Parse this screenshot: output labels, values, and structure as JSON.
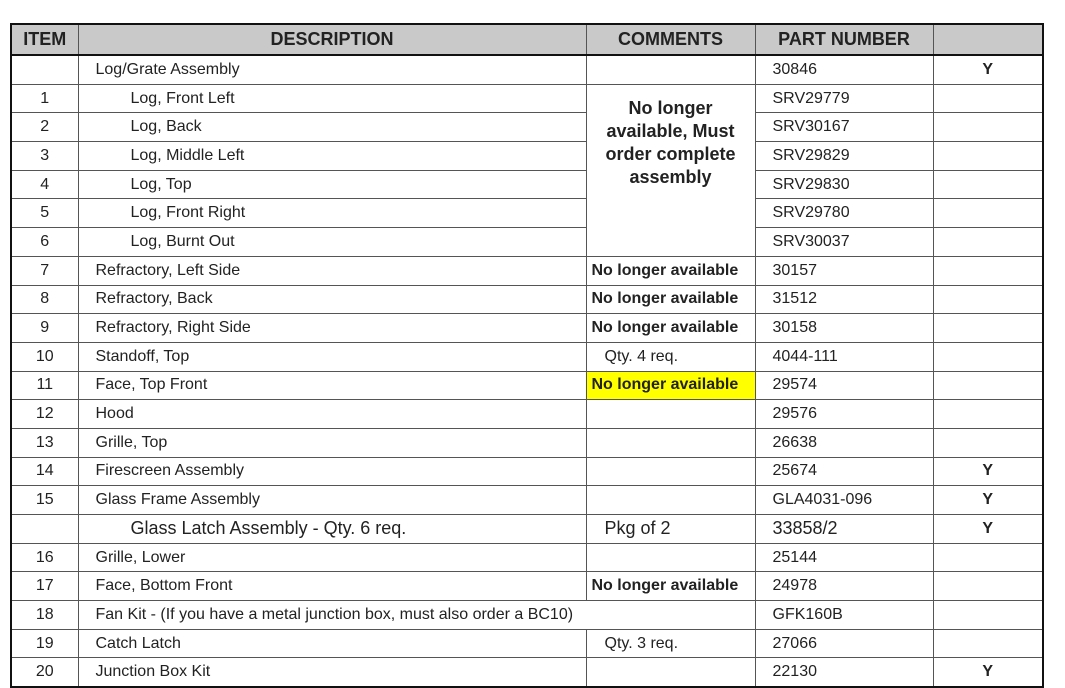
{
  "table": {
    "header": [
      "ITEM",
      "DESCRIPTION",
      "COMMENTS",
      "PART NUMBER"
    ],
    "merged_comment": "No longer available, Must order complete assembly",
    "rows": [
      {
        "description": "Log/Grate Assembly",
        "part": "30846",
        "flag": "Y"
      },
      {
        "item": "1",
        "description": "Log, Front Left",
        "part": "SRV29779",
        "indent": true,
        "in_merged_comment": true
      },
      {
        "item": "2",
        "description": "Log, Back",
        "part": "SRV30167",
        "indent": true,
        "in_merged_comment": true
      },
      {
        "item": "3",
        "description": "Log, Middle Left",
        "part": "SRV29829",
        "indent": true,
        "in_merged_comment": true
      },
      {
        "item": "4",
        "description": "Log, Top",
        "part": "SRV29830",
        "indent": true,
        "in_merged_comment": true
      },
      {
        "item": "5",
        "description": "Log, Front Right",
        "part": "SRV29780",
        "indent": true,
        "in_merged_comment": true
      },
      {
        "item": "6",
        "description": "Log, Burnt Out",
        "part": "SRV30037",
        "indent": true,
        "in_merged_comment": true
      },
      {
        "item": "7",
        "description": "Refractory, Left Side",
        "comment": "No longer available",
        "bold_comment": true,
        "part": "30157"
      },
      {
        "item": "8",
        "description": "Refractory, Back",
        "comment": "No longer available",
        "bold_comment": true,
        "part": "31512"
      },
      {
        "item": "9",
        "description": "Refractory, Right Side",
        "comment": "No longer available",
        "bold_comment": true,
        "part": "30158"
      },
      {
        "item": "10",
        "description": "Standoff, Top",
        "comment": "Qty. 4 req.",
        "part": "4044-111"
      },
      {
        "item": "11",
        "description": "Face, Top Front",
        "comment": "No longer available",
        "bold_comment": true,
        "highlight": true,
        "part": "29574"
      },
      {
        "item": "12",
        "description": "Hood",
        "part": "29576"
      },
      {
        "item": "13",
        "description": "Grille, Top",
        "part": "26638"
      },
      {
        "item": "14",
        "description": "Firescreen Assembly",
        "part": "25674",
        "flag": "Y"
      },
      {
        "item": "15",
        "description": "Glass Frame Assembly",
        "part": "GLA4031-096",
        "flag": "Y"
      },
      {
        "description": "Glass Latch Assembly -  Qty. 6 req.",
        "comment": "Pkg of 2",
        "part": "33858/2",
        "flag": "Y",
        "large": true
      },
      {
        "item": "16",
        "description": "Grille, Lower",
        "part": "25144"
      },
      {
        "item": "17",
        "description": "Face, Bottom Front",
        "comment": "No longer available",
        "bold_comment": true,
        "part": "24978"
      },
      {
        "item": "18",
        "description": "Fan Kit - (If you have a metal junction box, must also order a BC10)",
        "wide_description": true,
        "part": "GFK160B"
      },
      {
        "item": "19",
        "description": "Catch Latch",
        "comment": "Qty. 3 req.",
        "part": "27066"
      },
      {
        "item": "20",
        "description": "Junction Box Kit",
        "part": "22130",
        "flag": "Y"
      }
    ]
  }
}
